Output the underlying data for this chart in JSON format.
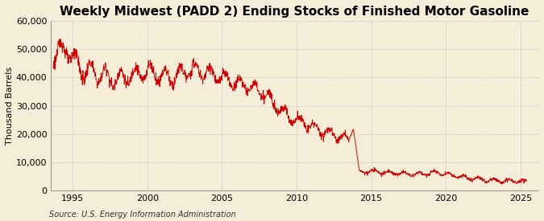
{
  "title": "Weekly Midwest (PADD 2) Ending Stocks of Finished Motor Gasoline",
  "ylabel": "Thousand Barrels",
  "source": "Source: U.S. Energy Information Administration",
  "bg_color": "#F5EDD8",
  "plot_bg_color": "#F5EDD8",
  "line_color": "#CC0000",
  "grid_color": "#BBBBBB",
  "ylim": [
    0,
    60000
  ],
  "yticks": [
    0,
    10000,
    20000,
    30000,
    40000,
    50000,
    60000
  ],
  "ytick_labels": [
    "0",
    "10,000",
    "20,000",
    "30,000",
    "40,000",
    "50,000",
    "60,000"
  ],
  "xlim_start": 1993.5,
  "xlim_end": 2026.2,
  "xticks": [
    1995,
    2000,
    2005,
    2010,
    2015,
    2020,
    2025
  ],
  "title_fontsize": 11,
  "ylabel_fontsize": 8,
  "tick_fontsize": 8,
  "source_fontsize": 7
}
